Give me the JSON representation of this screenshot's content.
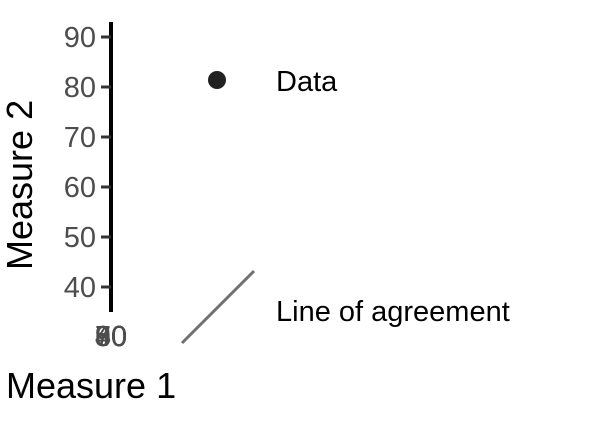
{
  "chart_data": {
    "type": "scatter",
    "xlabel": "Measure 1",
    "ylabel": "Measure 2",
    "ylim": [
      36,
      92
    ],
    "y_ticks": [
      40,
      50,
      60,
      70,
      80,
      90
    ],
    "x_ticks": [
      "40",
      "50",
      "60",
      "70",
      "80",
      "90"
    ],
    "series": [],
    "legend": {
      "placement": "right",
      "items": [
        {
          "label": "Data",
          "symbol": "point",
          "color": "#222222"
        },
        {
          "label": "Line of agreement",
          "symbol": "line",
          "color": "#707070"
        }
      ]
    },
    "grid": false
  }
}
